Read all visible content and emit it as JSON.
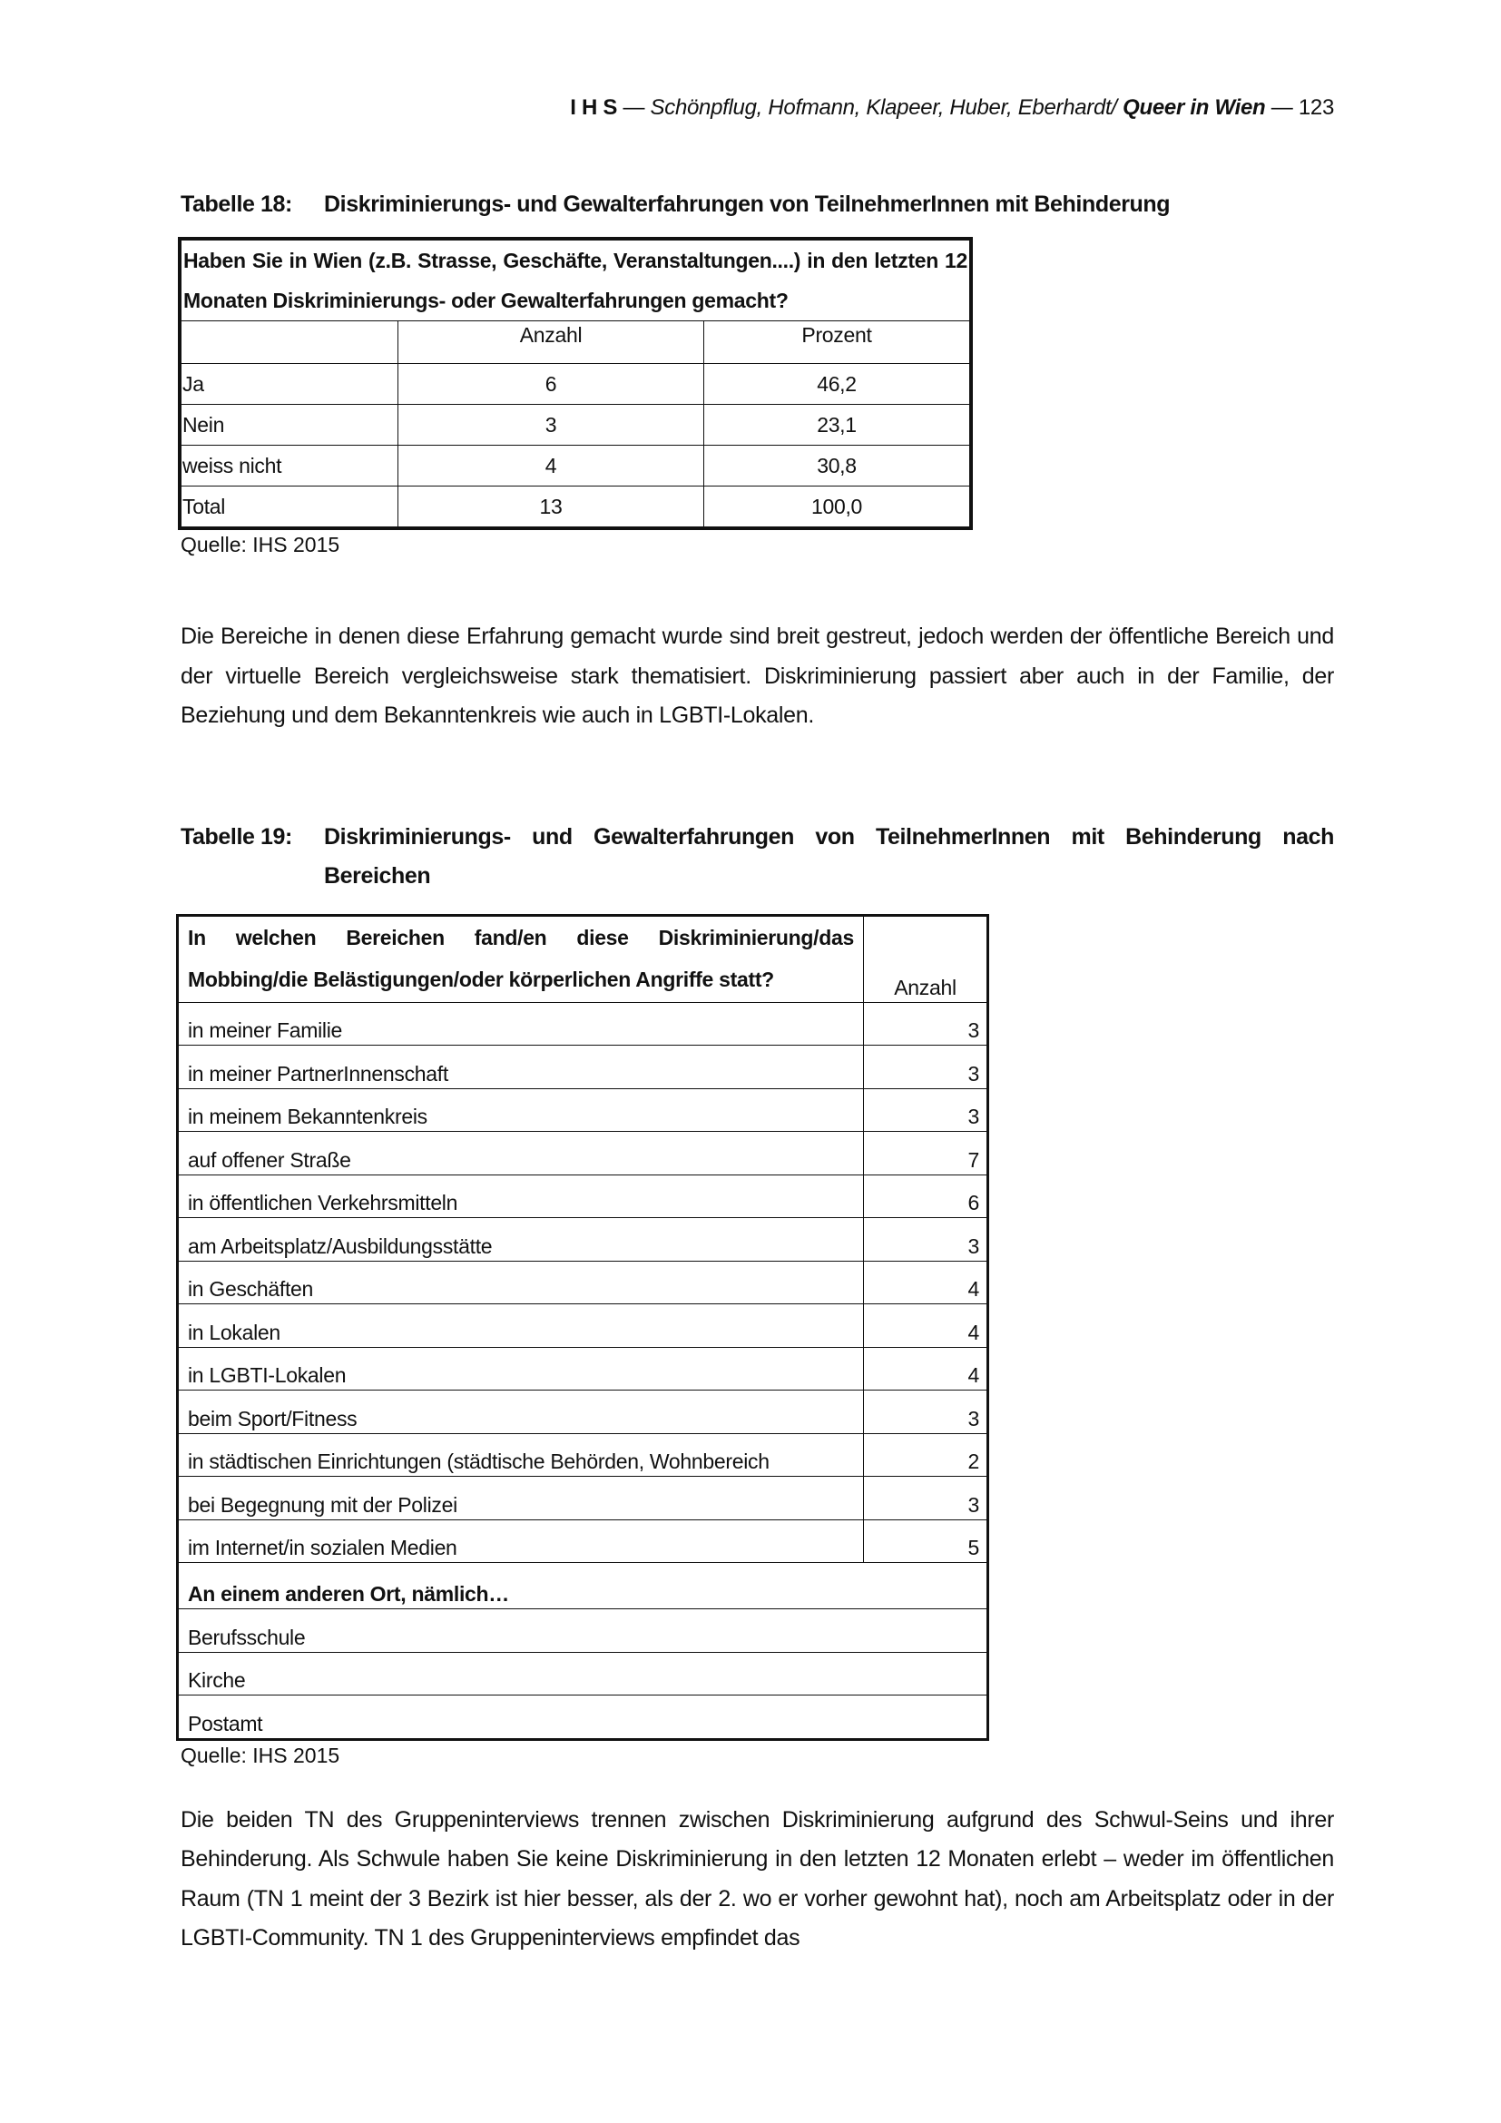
{
  "header": {
    "org": "I H S",
    "authors": "Schönpflug, Hofmann, Klapeer, Huber, Eberhardt/",
    "title": "Queer in Wien",
    "page": "123"
  },
  "table18": {
    "label": "Tabelle 18:",
    "caption": "Diskriminierungs- und Gewalterfahrungen von TeilnehmerInnen mit Behinderung",
    "question": "Haben Sie in Wien (z.B. Strasse, Geschäfte, Veranstaltungen....) in den letzten 12 Monaten Diskriminierungs- oder Gewalterfahrungen gemacht?",
    "columns": [
      "",
      "Anzahl",
      "Prozent"
    ],
    "rows": [
      {
        "label": "Ja",
        "anzahl": "6",
        "prozent": "46,2"
      },
      {
        "label": "Nein",
        "anzahl": "3",
        "prozent": "23,1"
      },
      {
        "label": "weiss nicht",
        "anzahl": "4",
        "prozent": "30,8"
      },
      {
        "label": "Total",
        "anzahl": "13",
        "prozent": "100,0"
      }
    ],
    "source": "Quelle: IHS 2015"
  },
  "paragraph1": "Die Bereiche in denen diese Erfahrung gemacht wurde sind breit gestreut, jedoch werden der öffentliche Bereich und der virtuelle Bereich vergleichsweise stark thematisiert. Diskriminierung passiert aber auch in der Familie, der Beziehung und dem Bekanntenkreis wie auch in LGBTI-Lokalen.",
  "table19": {
    "label": "Tabelle 19:",
    "caption": "Diskriminierungs- und Gewalterfahrungen von TeilnehmerInnen mit Behinderung nach Bereichen",
    "question": "In welchen Bereichen fand/en diese Diskriminierung/das Mobbing/die Belästigungen/oder körperlichen Angriffe statt?",
    "count_header": "Anzahl",
    "rows": [
      {
        "label": "in meiner Familie",
        "anzahl": "3"
      },
      {
        "label": "in meiner PartnerInnenschaft",
        "anzahl": "3"
      },
      {
        "label": "in meinem Bekanntenkreis",
        "anzahl": "3"
      },
      {
        "label": "auf offener Straße",
        "anzahl": "7"
      },
      {
        "label": "in öffentlichen Verkehrsmitteln",
        "anzahl": "6"
      },
      {
        "label": "am Arbeitsplatz/Ausbildungsstätte",
        "anzahl": "3"
      },
      {
        "label": "in Geschäften",
        "anzahl": "4"
      },
      {
        "label": "in Lokalen",
        "anzahl": "4"
      },
      {
        "label": "in LGBTI-Lokalen",
        "anzahl": "4"
      },
      {
        "label": "beim Sport/Fitness",
        "anzahl": "3"
      },
      {
        "label": "in städtischen Einrichtungen (städtische Behörden, Wohnbereich",
        "anzahl": "2"
      },
      {
        "label": "bei Begegnung mit der Polizei",
        "anzahl": "3"
      },
      {
        "label": "im Internet/in sozialen Medien",
        "anzahl": "5"
      }
    ],
    "other_header": "An einem anderen Ort, nämlich…",
    "other": [
      "Berufsschule",
      "Kirche",
      "Postamt"
    ],
    "source": "Quelle: IHS 2015"
  },
  "paragraph2": "Die beiden TN des Gruppeninterviews trennen zwischen Diskriminierung aufgrund des Schwul-Seins und ihrer Behinderung. Als Schwule haben Sie keine Diskriminierung in den letzten 12 Monaten erlebt – weder im öffentlichen Raum (TN 1 meint der 3 Bezirk ist hier besser, als der 2. wo er vorher gewohnt hat), noch am Arbeitsplatz oder in der LGBTI-Community. TN 1 des Gruppeninterviews empfindet das"
}
